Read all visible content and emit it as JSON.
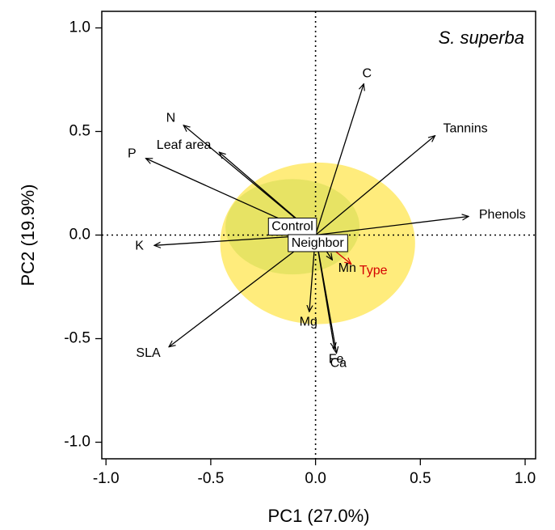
{
  "chart_data": {
    "type": "scatter",
    "subtype": "pca-biplot",
    "annotation": "S. superba",
    "xlabel": "PC1 (27.0%)",
    "ylabel": "PC2 (19.9%)",
    "xlim": [
      -1.02,
      1.05
    ],
    "ylim": [
      -1.08,
      1.08
    ],
    "xticks": [
      -1.0,
      -0.5,
      0.0,
      0.5,
      1.0
    ],
    "xtick_labels": [
      "-1.0",
      "-0.5",
      "0.0",
      "0.5",
      "1.0"
    ],
    "yticks": [
      -1.0,
      -0.5,
      0.0,
      0.5,
      1.0
    ],
    "ytick_labels": [
      "-1.0",
      "-0.5",
      "0.0",
      "0.5",
      "1.0"
    ],
    "reference_lines": {
      "x": 0,
      "y": 0,
      "style": "dotted"
    },
    "groups": [
      {
        "name": "Control",
        "x": -0.11,
        "y": 0.04,
        "ellipse": {
          "rx": 0.32,
          "ry": 0.23,
          "color": "#7fd07f"
        }
      },
      {
        "name": "Neighbor",
        "x": 0.01,
        "y": -0.04,
        "ellipse": {
          "rx": 0.465,
          "ry": 0.39,
          "color": "#ffe650"
        }
      }
    ],
    "loadings": [
      {
        "name": "C",
        "x": 0.23,
        "y": 0.73,
        "color": "#000000"
      },
      {
        "name": "Tannins",
        "x": 0.57,
        "y": 0.48,
        "color": "#000000"
      },
      {
        "name": "Phenols",
        "x": 0.73,
        "y": 0.09,
        "color": "#000000"
      },
      {
        "name": "N",
        "x": -0.63,
        "y": 0.53,
        "color": "#000000"
      },
      {
        "name": "Leaf area",
        "x": -0.46,
        "y": 0.4,
        "color": "#000000"
      },
      {
        "name": "P",
        "x": -0.81,
        "y": 0.37,
        "color": "#000000"
      },
      {
        "name": "K",
        "x": -0.77,
        "y": -0.05,
        "color": "#000000"
      },
      {
        "name": "SLA",
        "x": -0.7,
        "y": -0.54,
        "color": "#000000"
      },
      {
        "name": "Mn",
        "x": 0.08,
        "y": -0.12,
        "color": "#000000"
      },
      {
        "name": "Type",
        "x": 0.17,
        "y": -0.14,
        "color": "#d40000"
      },
      {
        "name": "Mg",
        "x": -0.03,
        "y": -0.37,
        "color": "#000000"
      },
      {
        "name": "Fe",
        "x": 0.09,
        "y": -0.55,
        "color": "#000000"
      },
      {
        "name": "Ca",
        "x": 0.1,
        "y": -0.57,
        "color": "#000000"
      }
    ]
  }
}
